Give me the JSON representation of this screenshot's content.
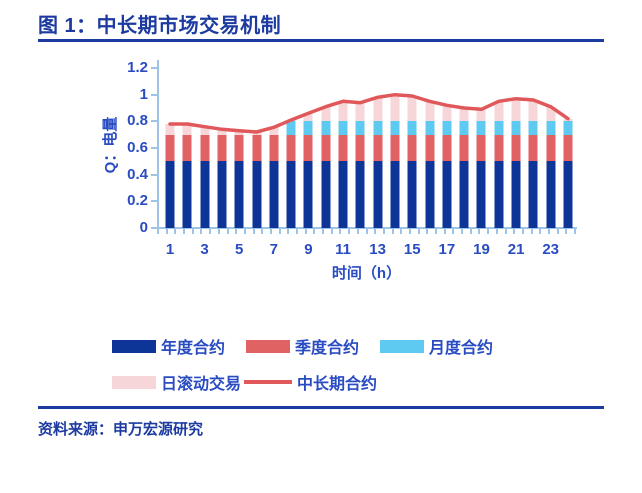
{
  "title": "图 1：中长期市场交易机制",
  "source": "资料来源：申万宏源研究",
  "colors": {
    "header_blue": "#1c3aa0",
    "axis_text_blue": "#2a4cc2",
    "axis_line_blue": "#9dc3e6",
    "annual_bar": "#0c3597",
    "quarterly_bar": "#e06263",
    "monthly_bar": "#5ec9f1",
    "daily_bar": "#f6d6d9",
    "line_red": "#e0585a"
  },
  "chart_data": {
    "type": "bar",
    "subtype": "stacked-bars-with-line-overlay",
    "x": [
      1,
      2,
      3,
      4,
      5,
      6,
      7,
      8,
      9,
      10,
      11,
      12,
      13,
      14,
      15,
      16,
      17,
      18,
      19,
      20,
      21,
      22,
      23,
      24
    ],
    "xticks_shown": [
      "1",
      "3",
      "5",
      "7",
      "9",
      "11",
      "13",
      "15",
      "17",
      "19",
      "21",
      "23"
    ],
    "yticks": [
      "0",
      "0.2",
      "0.4",
      "0.6",
      "0.8",
      "1",
      "1.2"
    ],
    "ytick_values": [
      0,
      0.2,
      0.4,
      0.6,
      0.8,
      1,
      1.2
    ],
    "ylim": [
      0,
      1.2
    ],
    "xlabel": "时间（h）",
    "ylabel": "Q：电量",
    "grid": false,
    "legend_position": "bottom",
    "series": [
      {
        "name": "年度合约",
        "kind": "bar",
        "color": "#0c3597",
        "values": [
          0.5,
          0.5,
          0.5,
          0.5,
          0.5,
          0.5,
          0.5,
          0.5,
          0.5,
          0.5,
          0.5,
          0.5,
          0.5,
          0.5,
          0.5,
          0.5,
          0.5,
          0.5,
          0.5,
          0.5,
          0.5,
          0.5,
          0.5,
          0.5
        ]
      },
      {
        "name": "季度合约",
        "kind": "bar",
        "color": "#e06263",
        "values": [
          0.2,
          0.2,
          0.2,
          0.2,
          0.2,
          0.2,
          0.2,
          0.2,
          0.2,
          0.2,
          0.2,
          0.2,
          0.2,
          0.2,
          0.2,
          0.2,
          0.2,
          0.2,
          0.2,
          0.2,
          0.2,
          0.2,
          0.2,
          0.2
        ]
      },
      {
        "name": "月度合约",
        "kind": "bar",
        "color": "#5ec9f1",
        "values": [
          0,
          0,
          0,
          0,
          0,
          0,
          0,
          0.1,
          0.1,
          0.1,
          0.1,
          0.1,
          0.1,
          0.1,
          0.1,
          0.1,
          0.1,
          0.1,
          0.1,
          0.1,
          0.1,
          0.1,
          0.1,
          0.1
        ]
      },
      {
        "name": "日滚动交易",
        "kind": "bar",
        "color": "#f6d6d9",
        "values": [
          0.08,
          0.08,
          0.06,
          0.04,
          0.03,
          0.02,
          0.055,
          0.01,
          0.06,
          0.11,
          0.15,
          0.14,
          0.18,
          0.2,
          0.19,
          0.15,
          0.12,
          0.1,
          0.09,
          0.15,
          0.17,
          0.16,
          0.11,
          0.02
        ]
      },
      {
        "name": "中长期合约",
        "kind": "line",
        "color": "#e0585a",
        "values": [
          0.78,
          0.78,
          0.76,
          0.74,
          0.73,
          0.72,
          0.755,
          0.81,
          0.86,
          0.91,
          0.95,
          0.94,
          0.98,
          1.0,
          0.99,
          0.95,
          0.92,
          0.9,
          0.89,
          0.95,
          0.97,
          0.96,
          0.91,
          0.82
        ]
      }
    ]
  },
  "legend": {
    "row1": [
      "年度合约",
      "季度合约",
      "月度合约"
    ],
    "row2": [
      "日滚动交易",
      "中长期合约"
    ]
  }
}
